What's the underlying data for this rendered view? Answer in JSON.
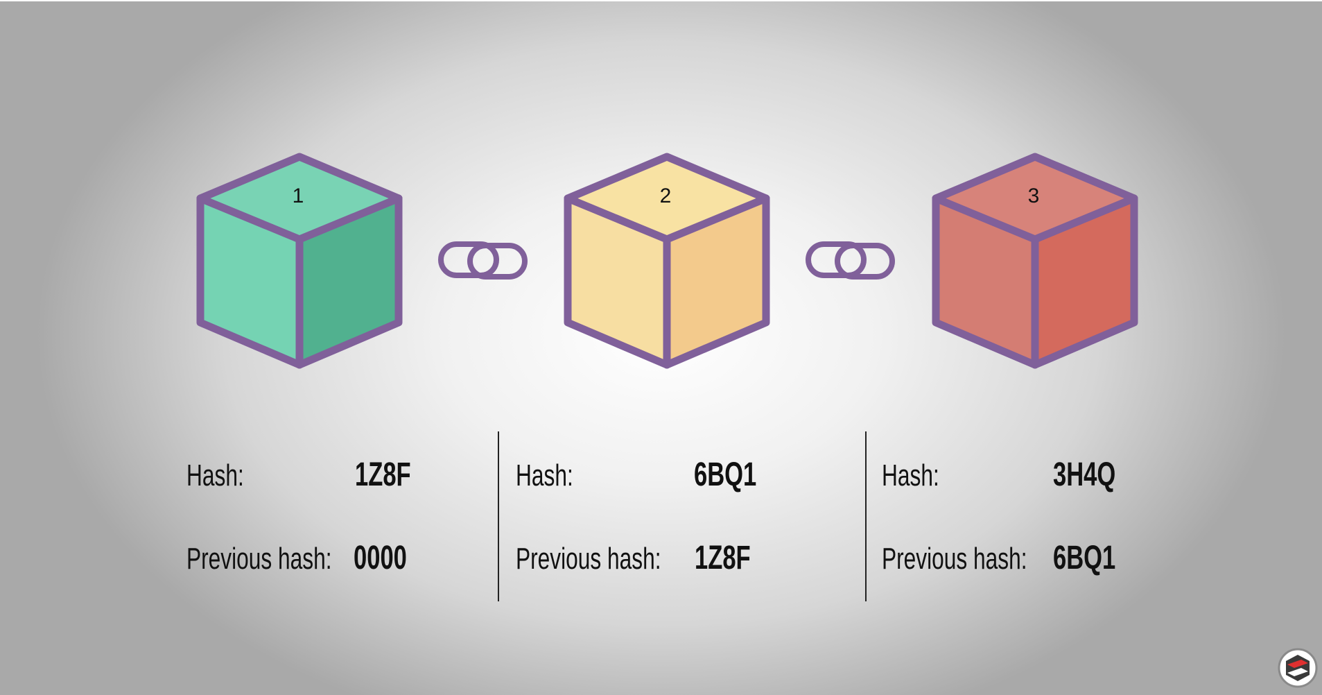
{
  "blocks": [
    {
      "number": "1",
      "hash_label": "Hash:",
      "hash": "1Z8F",
      "prev_label": "Previous hash:",
      "prev_hash": "0000",
      "colors": {
        "top": "#79d3b4",
        "left": "#75d3b3",
        "right": "#51b18f"
      }
    },
    {
      "number": "2",
      "hash_label": "Hash:",
      "hash": "6BQ1",
      "prev_label": "Previous hash:",
      "prev_hash": "1Z8F",
      "colors": {
        "top": "#f8e2a3",
        "left": "#f7dea2",
        "right": "#f3ca8c"
      }
    },
    {
      "number": "3",
      "hash_label": "Hash:",
      "hash": "3H4Q",
      "prev_label": "Previous hash:",
      "prev_hash": "6BQ1",
      "colors": {
        "top": "#d7837a",
        "left": "#d47d73",
        "right": "#d46a5d"
      }
    }
  ],
  "outline_color": "#80609a",
  "icons": [
    "chain-link-icon",
    "chain-link-icon",
    "channel-logo-icon"
  ]
}
